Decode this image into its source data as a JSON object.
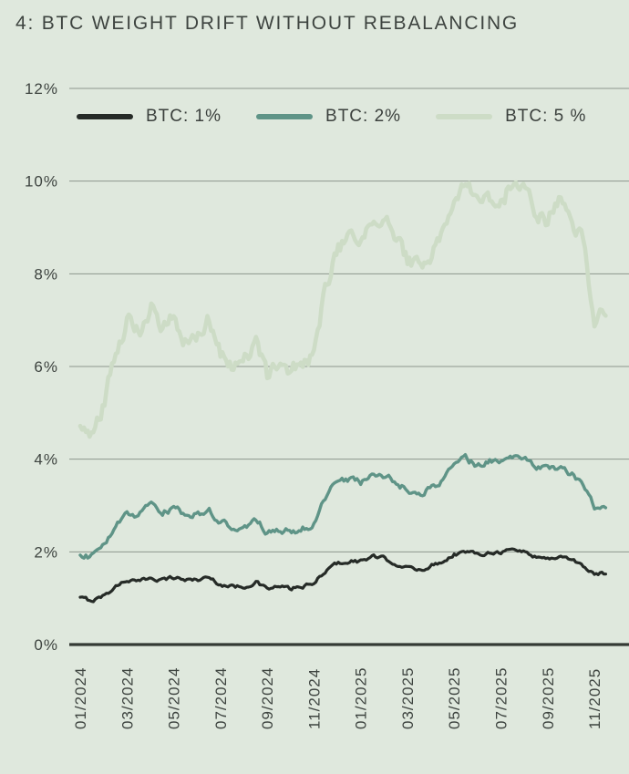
{
  "colors": {
    "background": "#dfe8dd",
    "grid": "#8d968d",
    "axis": "#343a34",
    "text": "#3e4440"
  },
  "chart_data": {
    "type": "line",
    "title": "4: BTC WEIGHT DRIFT WITHOUT REBALANCING",
    "xlabel": "",
    "ylabel": "",
    "ylim": [
      0,
      12
    ],
    "grid": true,
    "legend_position": "top-left-inside",
    "y_ticks": [
      {
        "value": 0,
        "label": "0%"
      },
      {
        "value": 2,
        "label": "2%"
      },
      {
        "value": 4,
        "label": "4%"
      },
      {
        "value": 6,
        "label": "6%"
      },
      {
        "value": 8,
        "label": "8%"
      },
      {
        "value": 10,
        "label": "10%"
      },
      {
        "value": 12,
        "label": "12%"
      }
    ],
    "x_ticks": [
      {
        "m": 0,
        "label": "01/2024"
      },
      {
        "m": 2,
        "label": "03/2024"
      },
      {
        "m": 4,
        "label": "05/2024"
      },
      {
        "m": 6,
        "label": "07/2024"
      },
      {
        "m": 8,
        "label": "09/2024"
      },
      {
        "m": 10,
        "label": "11/2024"
      },
      {
        "m": 12,
        "label": "01/2025"
      },
      {
        "m": 14,
        "label": "03/2025"
      },
      {
        "m": 16,
        "label": "05/2025"
      },
      {
        "m": 18,
        "label": "07/2025"
      },
      {
        "m": 20,
        "label": "09/2025"
      },
      {
        "m": 22,
        "label": "11/2025"
      }
    ],
    "x": [
      0,
      0.5,
      1,
      1.5,
      2,
      2.5,
      3,
      3.5,
      4,
      4.5,
      5,
      5.5,
      6,
      6.5,
      7,
      7.5,
      8,
      8.5,
      9,
      9.5,
      10,
      10.5,
      11,
      11.5,
      12,
      12.5,
      13,
      13.5,
      14,
      14.5,
      15,
      15.5,
      16,
      16.5,
      17,
      17.5,
      18,
      18.5,
      19,
      19.5,
      20,
      20.5,
      21,
      21.5,
      22,
      22.5
    ],
    "series": [
      {
        "name": "BTC: 1%",
        "color": "#262b27",
        "width": 3.2,
        "jitter": 0.035,
        "values": [
          1.0,
          0.95,
          1.05,
          1.25,
          1.4,
          1.35,
          1.45,
          1.4,
          1.45,
          1.4,
          1.4,
          1.45,
          1.3,
          1.25,
          1.25,
          1.35,
          1.2,
          1.25,
          1.2,
          1.25,
          1.3,
          1.6,
          1.75,
          1.8,
          1.8,
          1.9,
          1.85,
          1.75,
          1.65,
          1.6,
          1.7,
          1.8,
          1.95,
          2.0,
          1.95,
          2.0,
          2.0,
          2.05,
          2.0,
          1.9,
          1.85,
          1.9,
          1.85,
          1.7,
          1.5,
          1.55
        ]
      },
      {
        "name": "BTC: 2%",
        "color": "#5f9487",
        "width": 3.4,
        "jitter": 0.06,
        "values": [
          1.95,
          1.9,
          2.1,
          2.5,
          2.85,
          2.75,
          3.05,
          2.85,
          2.95,
          2.8,
          2.8,
          2.9,
          2.65,
          2.55,
          2.45,
          2.7,
          2.4,
          2.5,
          2.45,
          2.5,
          2.6,
          3.2,
          3.5,
          3.55,
          3.5,
          3.7,
          3.65,
          3.5,
          3.35,
          3.2,
          3.4,
          3.55,
          3.9,
          4.0,
          3.85,
          3.95,
          3.95,
          4.05,
          4.0,
          3.85,
          3.75,
          3.8,
          3.7,
          3.45,
          2.95,
          3.0
        ]
      },
      {
        "name": "BTC: 5 %",
        "color": "#cddcc6",
        "width": 4.6,
        "jitter": 0.16,
        "values": [
          4.75,
          4.55,
          5.2,
          6.2,
          7.0,
          6.7,
          7.3,
          6.9,
          7.1,
          6.6,
          6.65,
          7.0,
          6.3,
          5.95,
          6.1,
          6.55,
          5.8,
          6.05,
          5.9,
          6.05,
          6.3,
          7.8,
          8.5,
          8.7,
          8.6,
          9.3,
          9.2,
          8.7,
          8.3,
          8.05,
          8.45,
          8.8,
          9.6,
          9.95,
          9.4,
          9.6,
          9.5,
          10.0,
          9.75,
          9.4,
          9.2,
          9.55,
          9.0,
          8.7,
          7.0,
          7.25
        ]
      }
    ]
  }
}
